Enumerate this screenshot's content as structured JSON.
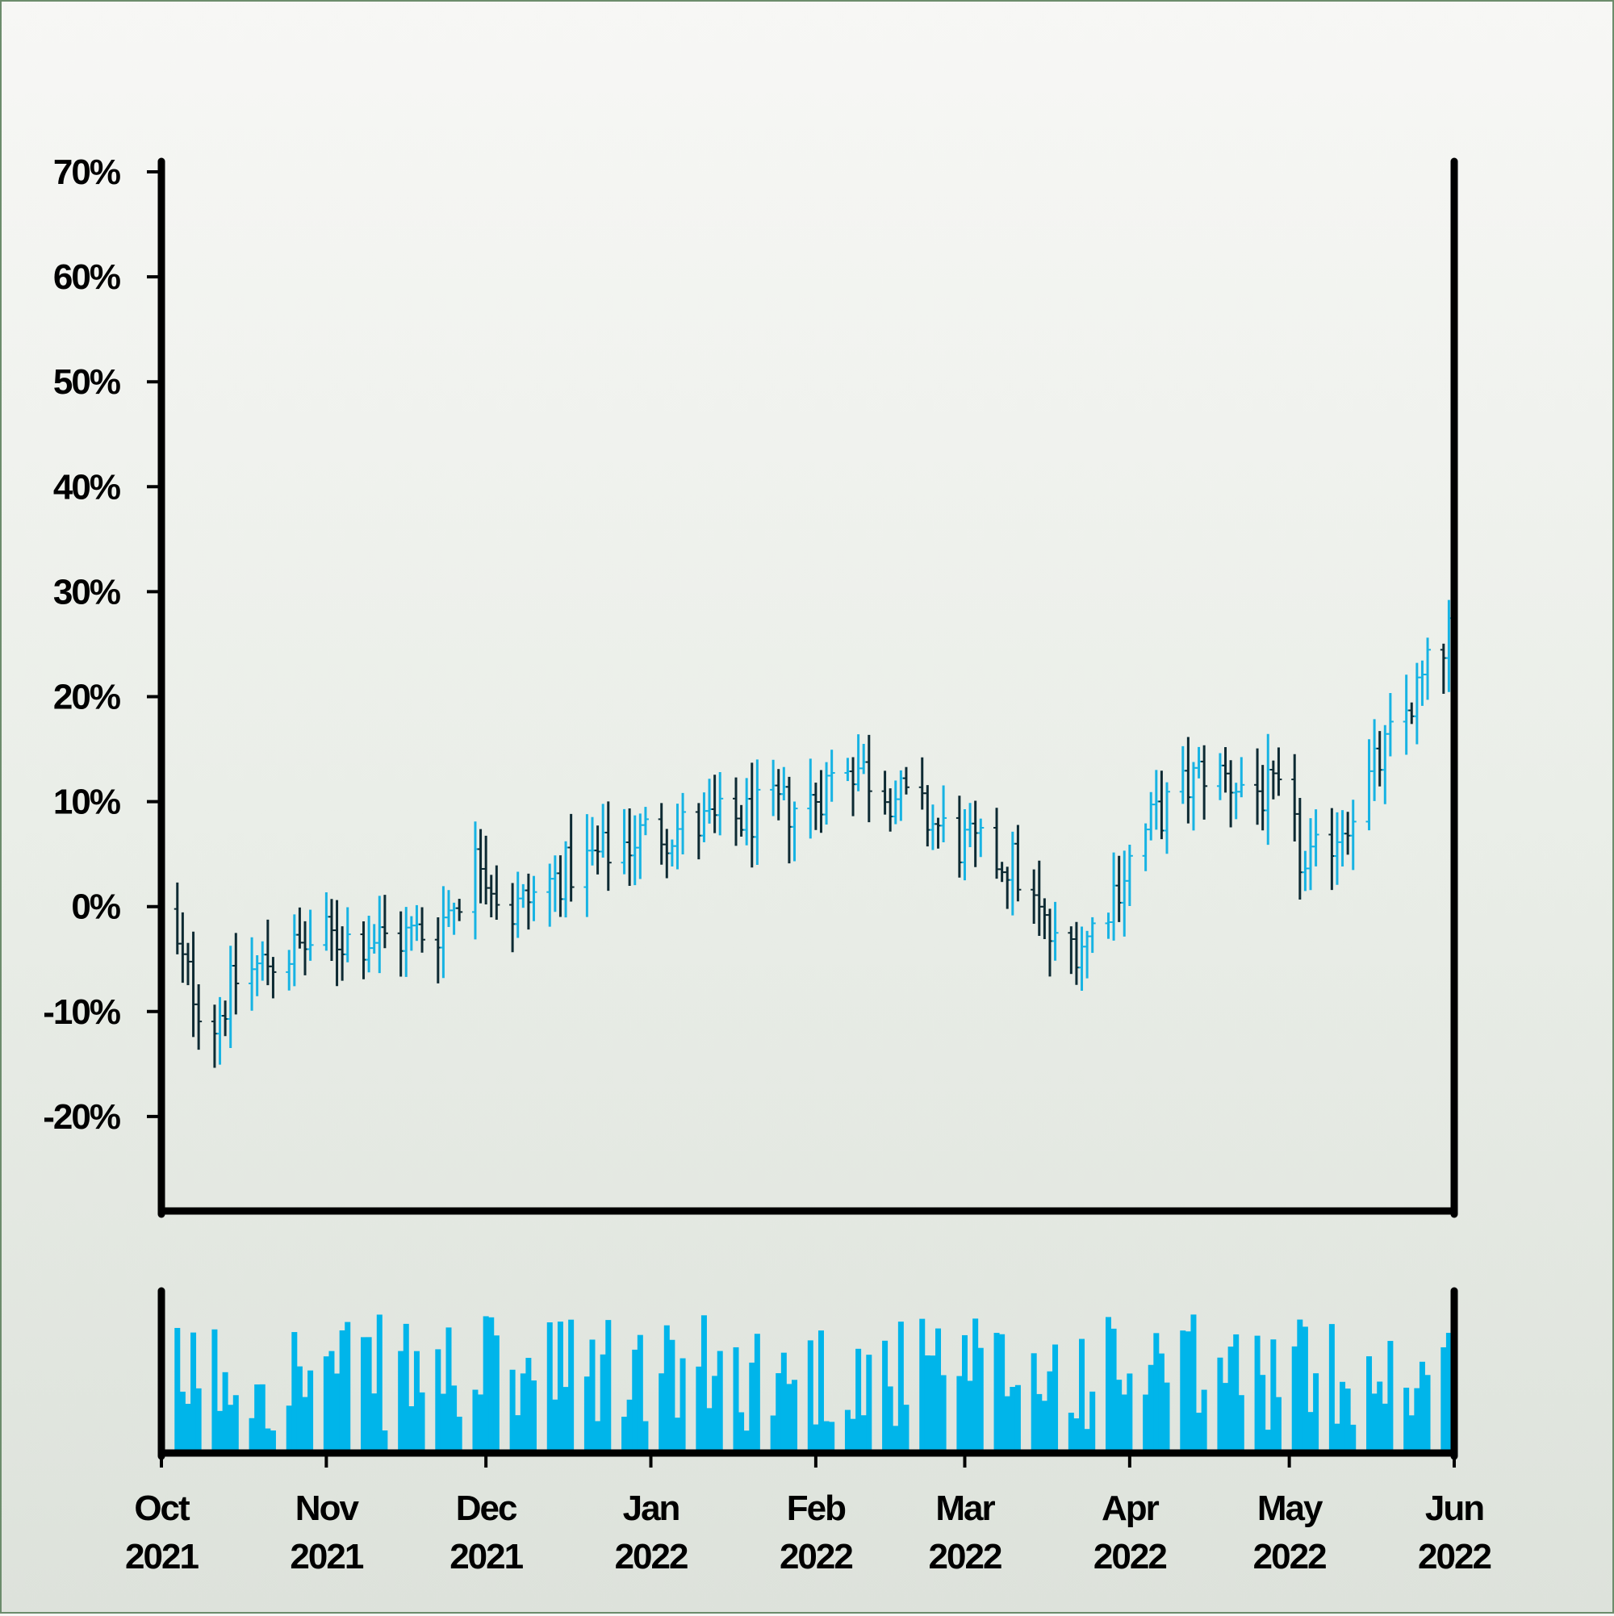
{
  "chart_data": {
    "type": "ohlc",
    "title": "",
    "xlabel": "",
    "ylabel": "",
    "y_axis": {
      "range": [
        -29,
        71
      ],
      "tick_values": [
        -20,
        -10,
        0,
        10,
        20,
        30,
        40,
        50,
        60,
        70
      ],
      "tick_labels": [
        "-20%",
        "-10%",
        "0%",
        "10%",
        "20%",
        "30%",
        "40%",
        "50%",
        "60%",
        "70%"
      ]
    },
    "x_axis": {
      "start": "2021-10-01",
      "end": "2022-06-01",
      "ticks": [
        {
          "date": "2021-10-01",
          "month": "Oct",
          "year": "2021"
        },
        {
          "date": "2021-11-01",
          "month": "Nov",
          "year": "2021"
        },
        {
          "date": "2021-12-01",
          "month": "Dec",
          "year": "2021"
        },
        {
          "date": "2022-01-01",
          "month": "Jan",
          "year": "2022"
        },
        {
          "date": "2022-02-01",
          "month": "Feb",
          "year": "2022"
        },
        {
          "date": "2022-03-01",
          "month": "Mar",
          "year": "2022"
        },
        {
          "date": "2022-04-01",
          "month": "Apr",
          "year": "2022"
        },
        {
          "date": "2022-05-01",
          "month": "May",
          "year": "2022"
        },
        {
          "date": "2022-06-01",
          "month": "Jun",
          "year": "2022"
        }
      ]
    },
    "price_path": [
      [
        "2021-10-01",
        -1
      ],
      [
        "2021-10-08",
        -9
      ],
      [
        "2021-10-11",
        -11
      ],
      [
        "2021-10-15",
        -7
      ],
      [
        "2021-10-22",
        -5
      ],
      [
        "2021-11-01",
        -3
      ],
      [
        "2021-11-15",
        -3
      ],
      [
        "2021-11-22",
        -2
      ],
      [
        "2021-11-30",
        5
      ],
      [
        "2021-12-05",
        -1
      ],
      [
        "2021-12-15",
        3
      ],
      [
        "2021-12-31",
        7
      ],
      [
        "2022-01-15",
        8
      ],
      [
        "2022-01-31",
        10
      ],
      [
        "2022-02-07",
        14
      ],
      [
        "2022-02-15",
        11
      ],
      [
        "2022-02-28",
        6
      ],
      [
        "2022-03-10",
        4
      ],
      [
        "2022-03-18",
        -4
      ],
      [
        "2022-03-24",
        -3
      ],
      [
        "2022-04-05",
        8
      ],
      [
        "2022-04-15",
        13
      ],
      [
        "2022-04-30",
        10
      ],
      [
        "2022-05-04",
        3
      ],
      [
        "2022-05-15",
        11
      ],
      [
        "2022-05-31",
        26
      ]
    ],
    "colors": {
      "up": "#17b3e3",
      "down": "#0d2a33",
      "volume": "#00b5ea",
      "axis": "#000000"
    },
    "volume": {
      "show_axis_labels": false
    },
    "grid": false,
    "legend": "none"
  }
}
